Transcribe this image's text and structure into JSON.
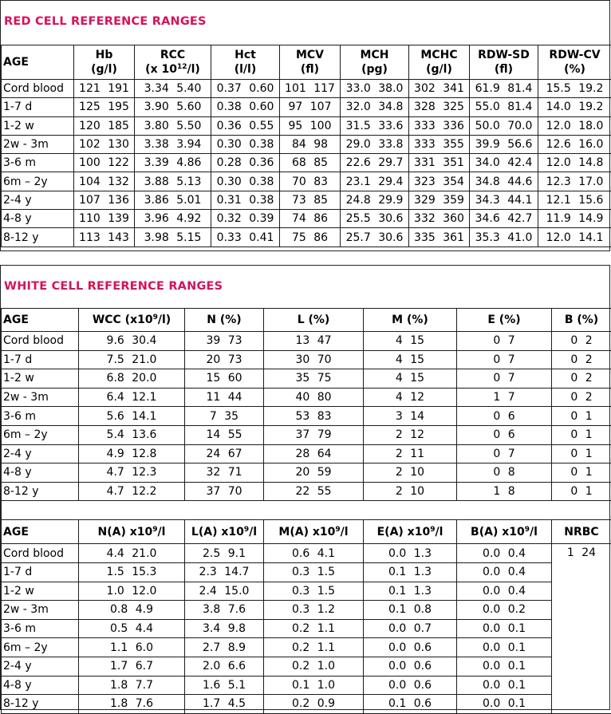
{
  "red": {
    "title": "RED CELL REFERENCE RANGES",
    "age_header": "AGE",
    "headers": [
      {
        "l1": "Hb",
        "l2": "(g/l)"
      },
      {
        "l1": "RCC",
        "l2a": "(x 10",
        "sup": "12",
        "l2b": "/l)"
      },
      {
        "l1": "Hct",
        "l2": "(l/l)"
      },
      {
        "l1": "MCV",
        "l2": "(fl)"
      },
      {
        "l1": "MCH",
        "l2": "(pg)"
      },
      {
        "l1": "MCHC",
        "l2": "(g/l)"
      },
      {
        "l1": "RDW-SD",
        "l2": "(fl)"
      },
      {
        "l1": "RDW-CV",
        "l2": "(%)"
      }
    ],
    "rows": [
      {
        "age": "Cord blood",
        "v": [
          "121  191",
          "3.34  5.40",
          "0.37  0.60",
          "101  117",
          "33.0  38.0",
          "302  341",
          "61.9  81.4",
          "15.5  19.2"
        ]
      },
      {
        "age": "1-7 d",
        "v": [
          "125  195",
          "3.90  5.60",
          "0.38  0.60",
          "97  107",
          "32.0  34.8",
          "328  325",
          "55.0  81.4",
          "14.0  19.2"
        ]
      },
      {
        "age": "1-2 w",
        "v": [
          "120  185",
          "3.80  5.50",
          "0.36  0.55",
          "95  100",
          "31.5  33.6",
          "333  336",
          "50.0  70.0",
          "12.0  18.0"
        ]
      },
      {
        "age": "2w - 3m",
        "v": [
          "102  130",
          "3.38  3.94",
          "0.30  0.38",
          "84  98",
          "29.0  33.8",
          "333  355",
          "39.9  56.6",
          "12.6  16.0"
        ]
      },
      {
        "age": "3-6 m",
        "v": [
          "100  122",
          "3.39  4.86",
          "0.28  0.36",
          "68  85",
          "22.6  29.7",
          "331  351",
          "34.0  42.4",
          "12.0  14.8"
        ]
      },
      {
        "age": "6m – 2y",
        "v": [
          "104  132",
          "3.88  5.13",
          "0.30  0.38",
          "70  83",
          "23.1  29.4",
          "323  354",
          "34.8  44.6",
          "12.3  17.0"
        ]
      },
      {
        "age": "2-4 y",
        "v": [
          "107  136",
          "3.86  5.01",
          "0.31  0.38",
          "73  85",
          "24.8  29.9",
          "329  359",
          "34.3  44.1",
          "12.1  15.6"
        ]
      },
      {
        "age": "4-8 y",
        "v": [
          "110  139",
          "3.96  4.92",
          "0.32  0.39",
          "74  86",
          "25.5  30.6",
          "332  360",
          "34.6  42.7",
          "11.9  14.9"
        ]
      },
      {
        "age": "8-12 y",
        "v": [
          "113  143",
          "3.98  5.15",
          "0.33  0.41",
          "75  86",
          "25.7  30.6",
          "335  361",
          "35.3  41.0",
          "12.0  14.1"
        ]
      }
    ]
  },
  "white": {
    "title": "WHITE CELL REFERENCE RANGES",
    "age_header": "AGE",
    "headers1": [
      {
        "a": "WCC (x10",
        "sup": "9",
        "b": "/l)"
      },
      {
        "a": "N (%)"
      },
      {
        "a": "L (%)"
      },
      {
        "a": "M (%)"
      },
      {
        "a": "E (%)"
      },
      {
        "a": "B (%)"
      }
    ],
    "rows1": [
      {
        "age": "Cord blood",
        "v": [
          "9.6  30.4",
          "39  73",
          "13  47",
          "4  15",
          "0  7",
          "0  2"
        ]
      },
      {
        "age": "1-7 d",
        "v": [
          "7.5  21.0",
          "20  73",
          "30  70",
          "4  15",
          "0  7",
          "0  2"
        ]
      },
      {
        "age": "1-2 w",
        "v": [
          "6.8  20.0",
          "15  60",
          "35  75",
          "4  15",
          "0  7",
          "0  2"
        ]
      },
      {
        "age": "2w - 3m",
        "v": [
          "6.4  12.1",
          "11  44",
          "40  80",
          "4  12",
          "1  7",
          "0  2"
        ]
      },
      {
        "age": "3-6 m",
        "v": [
          "5.6  14.1",
          "7  35",
          "53  83",
          "3  14",
          "0  6",
          "0  1"
        ]
      },
      {
        "age": "6m – 2y",
        "v": [
          "5.4  13.6",
          "14  55",
          "37  79",
          "2  12",
          "0  6",
          "0  1"
        ]
      },
      {
        "age": "2-4 y",
        "v": [
          "4.9  12.8",
          "24  67",
          "28  64",
          "2  11",
          "0  7",
          "0  1"
        ]
      },
      {
        "age": "4-8 y",
        "v": [
          "4.7  12.3",
          "32  71",
          "20  59",
          "2  10",
          "0  8",
          "0  1"
        ]
      },
      {
        "age": "8-12 y",
        "v": [
          "4.7  12.2",
          "37  70",
          "22  55",
          "2  10",
          "1  8",
          "0  1"
        ]
      }
    ],
    "headers2": [
      {
        "a": "N(A) x10",
        "sup": "9",
        "b": "/l"
      },
      {
        "a": "L(A) x10",
        "sup": "9",
        "b": "/l"
      },
      {
        "a": "M(A) x10",
        "sup": "9",
        "b": "/l"
      },
      {
        "a": "E(A) x10",
        "sup": "9",
        "b": "/l"
      },
      {
        "a": "B(A) x10",
        "sup": "9",
        "b": "/l"
      },
      {
        "a": "NRBC"
      }
    ],
    "rows2": [
      {
        "age": "Cord blood",
        "v": [
          "4.4  21.0",
          "2.5  9.1",
          "0.6  4.1",
          "0.0  1.3",
          "0.0  0.4",
          "1  24"
        ]
      },
      {
        "age": "1-7 d",
        "v": [
          "1.5  15.3",
          "2.3  14.7",
          "0.3  1.5",
          "0.1  1.3",
          "0.0  0.4",
          ""
        ]
      },
      {
        "age": "1-2 w",
        "v": [
          "1.0  12.0",
          "2.4  15.0",
          "0.3  1.5",
          "0.1  1.3",
          "0.0  0.4",
          ""
        ]
      },
      {
        "age": "2w - 3m",
        "v": [
          "0.8  4.9",
          "3.8  7.6",
          "0.3  1.2",
          "0.1  0.8",
          "0.0  0.2",
          ""
        ]
      },
      {
        "age": "3-6 m",
        "v": [
          "0.5  4.4",
          "3.4  9.8",
          "0.2  1.1",
          "0.0  0.7",
          "0.0  0.1",
          ""
        ]
      },
      {
        "age": "6m – 2y",
        "v": [
          "1.1  6.0",
          "2.7  8.9",
          "0.2  1.1",
          "0.0  0.6",
          "0.0  0.1",
          ""
        ]
      },
      {
        "age": "2-4 y",
        "v": [
          "1.7  6.7",
          "2.0  6.6",
          "0.2  1.0",
          "0.0  0.6",
          "0.0  0.1",
          ""
        ]
      },
      {
        "age": "4-8 y",
        "v": [
          "1.8  7.7",
          "1.6  5.1",
          "0.1  1.0",
          "0.0  0.6",
          "0.0  0.1",
          ""
        ]
      },
      {
        "age": "8-12 y",
        "v": [
          "1.8  7.6",
          "1.7  4.5",
          "0.2  0.9",
          "0.1  0.6",
          "0.0  0.1",
          ""
        ]
      }
    ]
  }
}
